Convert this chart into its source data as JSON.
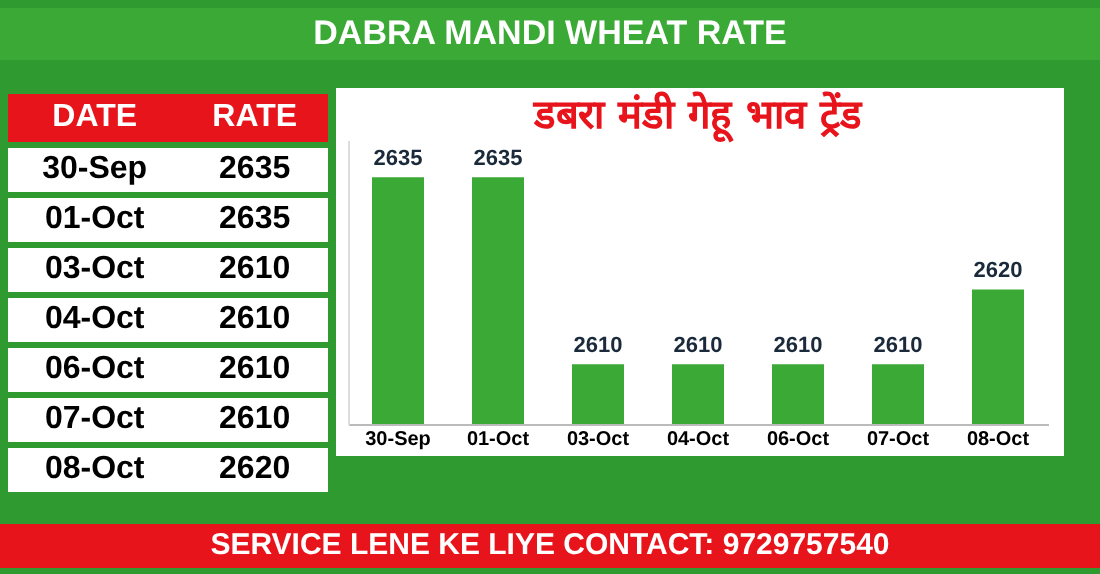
{
  "chart_data": {
    "type": "bar",
    "title": "DABRA MANDI WHEAT RATE",
    "subtitle": "डबरा मंडी गेहू भाव ट्रेंड",
    "categories": [
      "30-Sep",
      "01-Oct",
      "03-Oct",
      "04-Oct",
      "06-Oct",
      "07-Oct",
      "08-Oct"
    ],
    "values": [
      2635,
      2635,
      2610,
      2610,
      2610,
      2610,
      2620
    ],
    "value_labels": [
      "2635",
      "2635",
      "2610",
      "2610",
      "2610",
      "2610",
      "2620"
    ],
    "color": "#3aa935",
    "ylim": [
      2602,
      2640
    ],
    "tick_labels": "x",
    "annotations": [
      "DATE",
      "RATE",
      "SERVICE LENE KE LIYE CONTACT: 9729757540"
    ]
  }
}
